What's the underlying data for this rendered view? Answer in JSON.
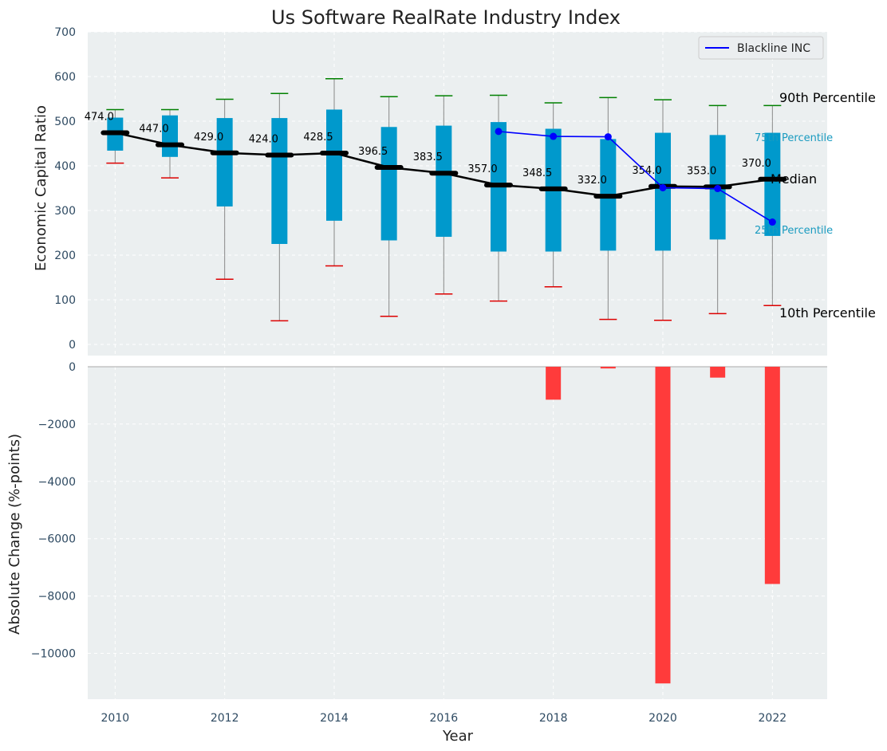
{
  "chart_data": [
    {
      "type": "box",
      "title": "Us Software RealRate Industry Index",
      "ylabel": "Economic Capital Ratio",
      "ylim": [
        0,
        700
      ],
      "yticks": [
        0,
        100,
        200,
        300,
        400,
        500,
        600,
        700
      ],
      "grid": true,
      "legend": {
        "position": "top-right",
        "entries": [
          "Blackline INC"
        ]
      },
      "boxes": [
        {
          "year": 2010,
          "p10": 406,
          "q1": 434,
          "median": 474.0,
          "q3": 508,
          "p90": 526
        },
        {
          "year": 2011,
          "p10": 373,
          "q1": 420,
          "median": 447.0,
          "q3": 513,
          "p90": 526
        },
        {
          "year": 2012,
          "p10": 146,
          "q1": 309,
          "median": 429.0,
          "q3": 507,
          "p90": 549
        },
        {
          "year": 2013,
          "p10": 53,
          "q1": 225,
          "median": 424.0,
          "q3": 507,
          "p90": 562
        },
        {
          "year": 2014,
          "p10": 176,
          "q1": 277,
          "median": 428.5,
          "q3": 526,
          "p90": 595
        },
        {
          "year": 2015,
          "p10": 63,
          "q1": 233,
          "median": 396.5,
          "q3": 487,
          "p90": 555
        },
        {
          "year": 2016,
          "p10": 113,
          "q1": 241,
          "median": 383.5,
          "q3": 490,
          "p90": 557
        },
        {
          "year": 2017,
          "p10": 97,
          "q1": 208,
          "median": 357.0,
          "q3": 498,
          "p90": 558
        },
        {
          "year": 2018,
          "p10": 129,
          "q1": 208,
          "median": 348.5,
          "q3": 483,
          "p90": 541
        },
        {
          "year": 2019,
          "p10": 56,
          "q1": 210,
          "median": 332.0,
          "q3": 460,
          "p90": 553
        },
        {
          "year": 2020,
          "p10": 54,
          "q1": 210,
          "median": 354.0,
          "q3": 474,
          "p90": 548
        },
        {
          "year": 2021,
          "p10": 69,
          "q1": 235,
          "median": 353.0,
          "q3": 469,
          "p90": 535
        },
        {
          "year": 2022,
          "p10": 87,
          "q1": 243,
          "median": 370.0,
          "q3": 474,
          "p90": 535
        }
      ],
      "series": [
        {
          "name": "Blackline INC",
          "color": "#0000ff",
          "x": [
            2017,
            2018,
            2019,
            2020,
            2021,
            2022
          ],
          "values": [
            477,
            466,
            465,
            351,
            349,
            274
          ]
        }
      ],
      "annotations": {
        "p90": "90th Percentile",
        "p75": "75th Percentile",
        "median": "Median",
        "p25": "25th Percentile",
        "p10": "10th Percentile"
      },
      "colors": {
        "box": "#0099cc",
        "median": "#000000",
        "p90_cap": "#008000",
        "p10_cap": "#dd0000"
      }
    },
    {
      "type": "bar",
      "xlabel": "Year",
      "ylabel": "Absolute Change (%-points)",
      "ylim": [
        -11600,
        0
      ],
      "yticks": [
        0,
        -2000,
        -4000,
        -6000,
        -8000,
        -10000
      ],
      "xticks": [
        2010,
        2012,
        2014,
        2016,
        2018,
        2020,
        2022
      ],
      "xlim": [
        2009.5,
        2023
      ],
      "grid": true,
      "x": [
        2018,
        2019,
        2020,
        2021,
        2022
      ],
      "values": [
        -1150,
        -60,
        -11050,
        -380,
        -7580
      ],
      "color": "#ff3b3b"
    }
  ]
}
